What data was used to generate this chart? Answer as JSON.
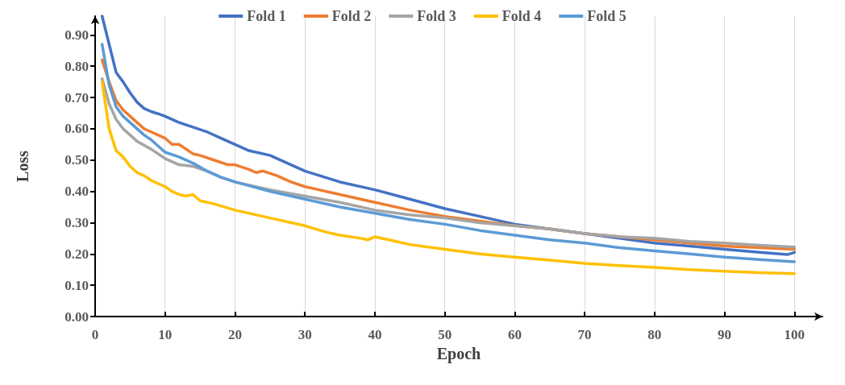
{
  "chart_data": {
    "type": "line",
    "xlabel": "Epoch",
    "ylabel": "Loss",
    "xlim": [
      0,
      104
    ],
    "xticks": [
      0,
      10,
      20,
      30,
      40,
      50,
      60,
      70,
      80,
      90,
      100
    ],
    "ylim": [
      0,
      0.96
    ],
    "yticks": [
      {
        "value": 0,
        "label": "0.00"
      },
      {
        "value": 0.1,
        "label": "0.10"
      },
      {
        "value": 0.2,
        "label": "0.20"
      },
      {
        "value": 0.3,
        "label": "0.30"
      },
      {
        "value": 0.4,
        "label": "0.40"
      },
      {
        "value": 0.5,
        "label": "0.50"
      },
      {
        "value": 0.6,
        "label": "0.60"
      },
      {
        "value": 0.7,
        "label": "0.70"
      },
      {
        "value": 0.8,
        "label": "0.80"
      },
      {
        "value": 0.9,
        "label": "0.90"
      }
    ],
    "grid": "x",
    "legend": "top",
    "marker": "none",
    "line_style": "solid",
    "series": [
      {
        "name": "Fold 1",
        "color": "#4472c4",
        "x": [
          1,
          2,
          3,
          4,
          5,
          6,
          7,
          8,
          9,
          10,
          12,
          14,
          16,
          18,
          20,
          22,
          25,
          30,
          35,
          40,
          45,
          50,
          55,
          60,
          65,
          70,
          75,
          80,
          85,
          90,
          95,
          99,
          100
        ],
        "values": [
          0.96,
          0.87,
          0.78,
          0.75,
          0.715,
          0.685,
          0.665,
          0.655,
          0.648,
          0.64,
          0.62,
          0.605,
          0.59,
          0.57,
          0.55,
          0.53,
          0.515,
          0.465,
          0.43,
          0.405,
          0.375,
          0.345,
          0.32,
          0.295,
          0.28,
          0.265,
          0.25,
          0.235,
          0.225,
          0.215,
          0.205,
          0.198,
          0.205
        ]
      },
      {
        "name": "Fold 2",
        "color": "#ed7d31",
        "x": [
          1,
          2,
          3,
          4,
          5,
          6,
          7,
          8,
          9,
          10,
          11,
          12,
          13,
          14,
          15,
          17,
          19,
          20,
          22,
          23,
          24,
          26,
          28,
          30,
          32,
          35,
          40,
          45,
          50,
          55,
          60,
          65,
          70,
          75,
          80,
          85,
          90,
          95,
          100
        ],
        "values": [
          0.82,
          0.75,
          0.69,
          0.66,
          0.64,
          0.62,
          0.6,
          0.59,
          0.58,
          0.57,
          0.55,
          0.55,
          0.535,
          0.52,
          0.515,
          0.5,
          0.485,
          0.485,
          0.47,
          0.46,
          0.465,
          0.45,
          0.43,
          0.415,
          0.405,
          0.39,
          0.365,
          0.34,
          0.32,
          0.305,
          0.29,
          0.28,
          0.265,
          0.255,
          0.245,
          0.235,
          0.225,
          0.22,
          0.215
        ]
      },
      {
        "name": "Fold 3",
        "color": "#a5a5a5",
        "x": [
          1,
          2,
          3,
          4,
          5,
          6,
          8,
          10,
          12,
          14,
          16,
          18,
          20,
          25,
          30,
          35,
          40,
          45,
          50,
          55,
          60,
          65,
          70,
          75,
          80,
          85,
          90,
          95,
          100
        ],
        "values": [
          0.76,
          0.68,
          0.63,
          0.6,
          0.58,
          0.56,
          0.535,
          0.505,
          0.485,
          0.48,
          0.465,
          0.445,
          0.43,
          0.405,
          0.385,
          0.365,
          0.34,
          0.325,
          0.315,
          0.3,
          0.29,
          0.28,
          0.265,
          0.255,
          0.25,
          0.24,
          0.235,
          0.228,
          0.222
        ]
      },
      {
        "name": "Fold 4",
        "color": "#ffc000",
        "x": [
          1,
          2,
          3,
          4,
          5,
          6,
          7,
          8,
          10,
          11,
          12,
          13,
          14,
          15,
          17,
          20,
          25,
          30,
          33,
          35,
          38,
          39,
          40,
          42,
          45,
          50,
          55,
          60,
          65,
          70,
          75,
          80,
          85,
          90,
          95,
          100
        ],
        "values": [
          0.75,
          0.6,
          0.53,
          0.51,
          0.48,
          0.46,
          0.45,
          0.435,
          0.415,
          0.4,
          0.39,
          0.385,
          0.39,
          0.37,
          0.36,
          0.34,
          0.315,
          0.29,
          0.27,
          0.26,
          0.25,
          0.245,
          0.255,
          0.245,
          0.23,
          0.215,
          0.2,
          0.19,
          0.18,
          0.17,
          0.163,
          0.157,
          0.15,
          0.145,
          0.14,
          0.137
        ]
      },
      {
        "name": "Fold 5",
        "color": "#5b9bd5",
        "x": [
          1,
          2,
          3,
          4,
          5,
          6,
          7,
          8,
          9,
          10,
          12,
          14,
          16,
          18,
          20,
          25,
          30,
          35,
          40,
          45,
          50,
          55,
          60,
          65,
          70,
          75,
          80,
          85,
          90,
          95,
          100
        ],
        "values": [
          0.87,
          0.74,
          0.67,
          0.64,
          0.62,
          0.6,
          0.58,
          0.565,
          0.545,
          0.525,
          0.51,
          0.49,
          0.465,
          0.445,
          0.43,
          0.4,
          0.375,
          0.35,
          0.33,
          0.31,
          0.295,
          0.275,
          0.26,
          0.245,
          0.235,
          0.22,
          0.21,
          0.2,
          0.19,
          0.182,
          0.175
        ]
      }
    ]
  }
}
